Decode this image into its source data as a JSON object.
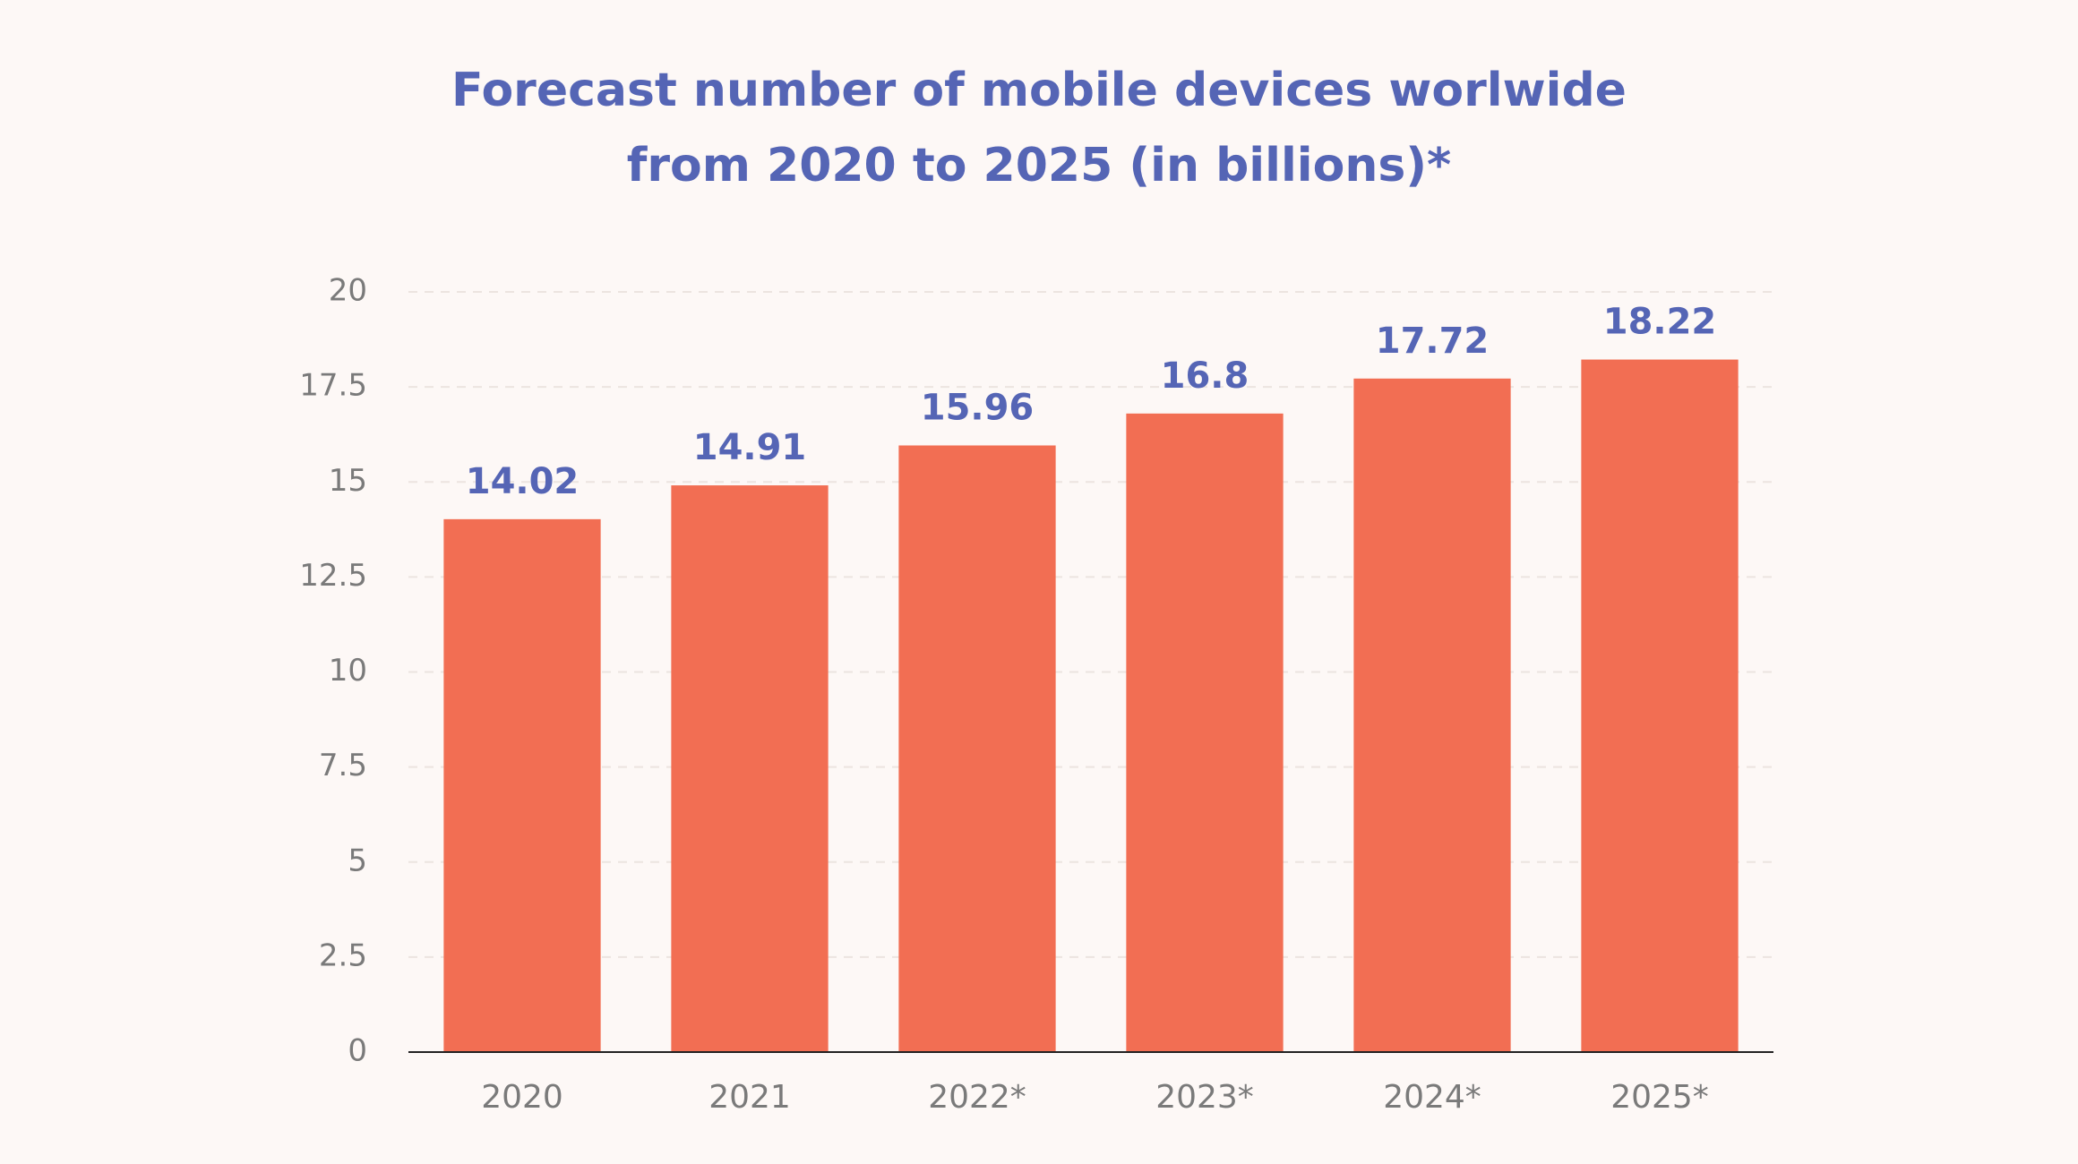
{
  "chart_data": {
    "type": "bar",
    "title": [
      "Forecast number of mobile devices worlwide",
      "from 2020 to 2025 (in billions)*"
    ],
    "categories": [
      "2020",
      "2021",
      "2022*",
      "2023*",
      "2024*",
      "2025*"
    ],
    "values": [
      14.02,
      14.91,
      15.96,
      16.8,
      17.72,
      18.22
    ],
    "color": "#f26e53",
    "ylim": [
      0,
      20
    ],
    "yticks": [
      0,
      2.5,
      5,
      7.5,
      10,
      12.5,
      15,
      17.5,
      20
    ],
    "grid": true
  }
}
